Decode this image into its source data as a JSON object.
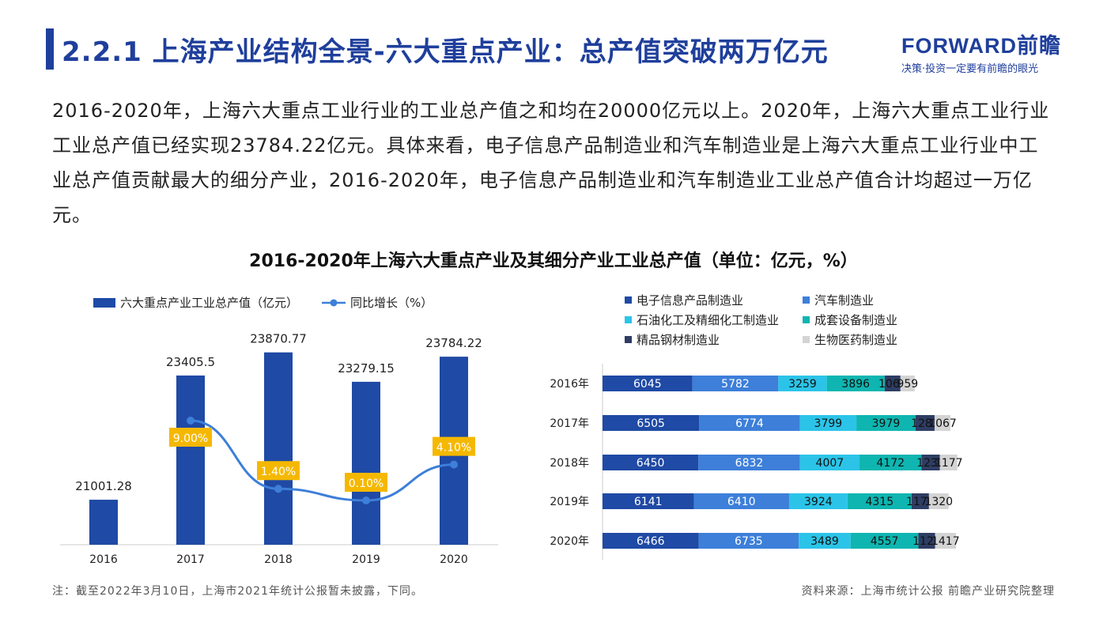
{
  "header": {
    "title": "2.2.1 上海产业结构全景-六大重点产业：总产值突破两万亿元",
    "logo_main": "FORWARD前瞻",
    "logo_sub": "决策·投资一定要有前瞻的眼光"
  },
  "intro": {
    "text": "2016-2020年，上海六大重点工业行业的工业总产值之和均在20000亿元以上。2020年，上海六大重点工业行业工业总产值已经实现23784.22亿元。具体来看，电子信息产品制造业和汽车制造业是上海六大重点工业行业中工业总产值贡献最大的细分产业，2016-2020年，电子信息产品制造业和汽车制造业工业总产值合计均超过一万亿元。"
  },
  "chart_title": "2016-2020年上海六大重点产业及其细分产业工业总产值（单位：亿元，%）",
  "colors": {
    "accent": "#1f3f9c",
    "bar": "#1f4aa5",
    "line": "#3d7fd9",
    "label_box": "#f5b800"
  },
  "chart_data": [
    {
      "type": "bar",
      "categories": [
        "2016",
        "2017",
        "2018",
        "2019",
        "2020"
      ],
      "series": [
        {
          "name": "六大重点产业工业总产值（亿元）",
          "values": [
            21001.28,
            23405.5,
            23870.77,
            23279.15,
            23784.22
          ],
          "labels": [
            "21001.28",
            "23405.5",
            "23870.77",
            "23279.15",
            "23784.22"
          ]
        },
        {
          "name": "同比增长（%）",
          "type": "line",
          "values": [
            null,
            9.0,
            1.4,
            0.1,
            4.1
          ],
          "labels": [
            "",
            "9.00%",
            "1.40%",
            "0.10%",
            "4.10%"
          ]
        }
      ],
      "legend": [
        {
          "label": "六大重点产业工业总产值（亿元）",
          "kind": "bar"
        },
        {
          "label": "同比增长（%）",
          "kind": "line"
        }
      ]
    },
    {
      "type": "bar",
      "orientation": "horizontal",
      "stacked": true,
      "categories": [
        "2016年",
        "2017年",
        "2018年",
        "2019年",
        "2020年"
      ],
      "series": [
        {
          "name": "电子信息产品制造业",
          "color": "#1f4aa5",
          "values": [
            6045,
            6505,
            6450,
            6141,
            6466
          ]
        },
        {
          "name": "汽车制造业",
          "color": "#3d7fd9",
          "values": [
            5782,
            6774,
            6832,
            6410,
            6735
          ]
        },
        {
          "name": "石油化工及精细化工制造业",
          "color": "#2bc4e8",
          "values": [
            3259,
            3799,
            4007,
            3924,
            3489
          ]
        },
        {
          "name": "成套设备制造业",
          "color": "#0fb5b0",
          "values": [
            3896,
            3979,
            4172,
            4315,
            4557
          ]
        },
        {
          "name": "精品钢材制造业",
          "color": "#2e3d63",
          "values": [
            1060,
            1281,
            1233,
            1170,
            1120
          ]
        },
        {
          "name": "生物医药制造业",
          "color": "#d4d4d4",
          "values": [
            959,
            1067,
            1177,
            1320,
            1417
          ]
        }
      ]
    }
  ],
  "footer": {
    "note": "注：截至2022年3月10日，上海市2021年统计公报暂未披露，下同。",
    "source": "资料来源：上海市统计公报 前瞻产业研究院整理"
  }
}
